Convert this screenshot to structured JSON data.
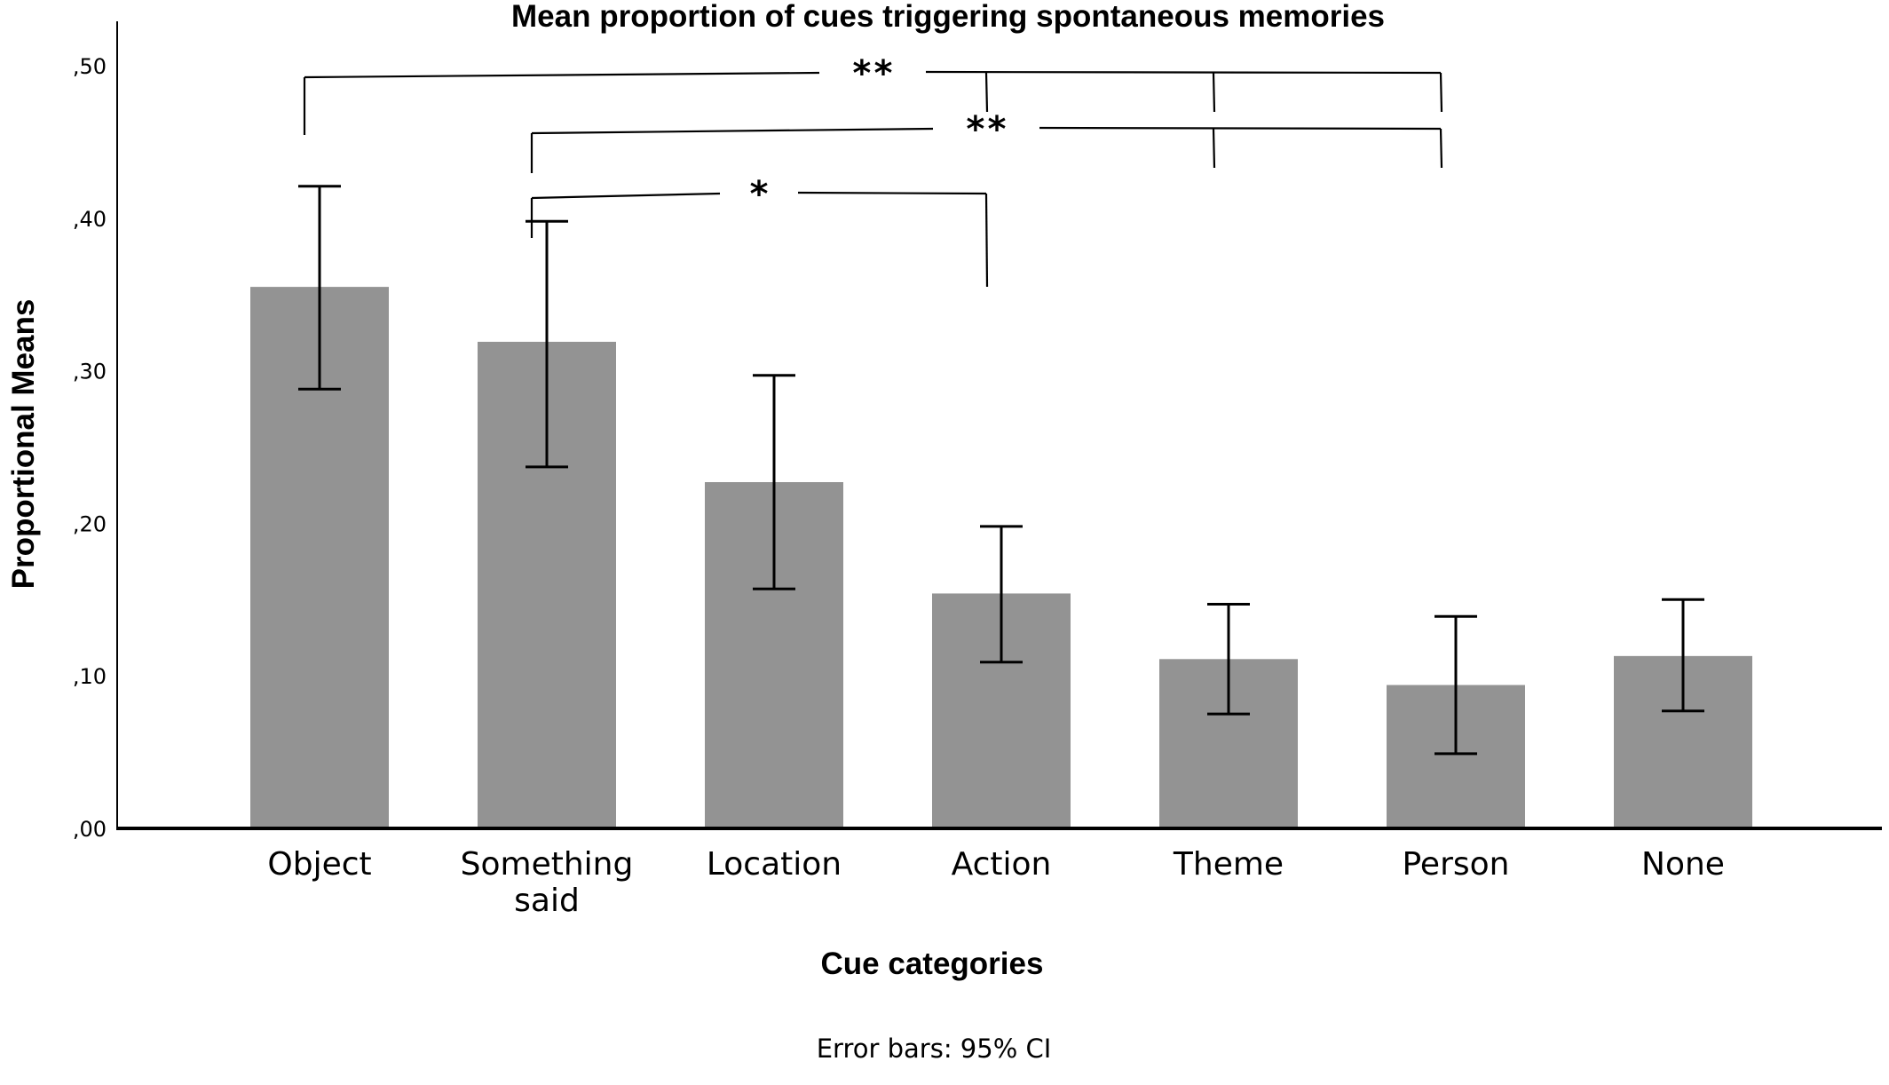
{
  "chart_data": {
    "type": "bar",
    "title": "Mean proportion of cues triggering spontaneous memories",
    "xlabel": "Cue categories",
    "ylabel": "Proportional Means",
    "categories": [
      [
        "Object"
      ],
      [
        "Something",
        "said"
      ],
      [
        "Location"
      ],
      [
        "Action"
      ],
      [
        "Theme"
      ],
      [
        "Person"
      ],
      [
        "None"
      ]
    ],
    "values": [
      0.355,
      0.319,
      0.227,
      0.154,
      0.111,
      0.094,
      0.113
    ],
    "ci_low": [
      0.288,
      0.237,
      0.157,
      0.109,
      0.075,
      0.049,
      0.077
    ],
    "ci_high": [
      0.421,
      0.398,
      0.297,
      0.198,
      0.147,
      0.139,
      0.15
    ],
    "ylim": [
      0,
      0.5
    ],
    "yticks": [
      0,
      0.1,
      0.2,
      0.3,
      0.4,
      0.5
    ],
    "ytick_labels": [
      ",00",
      ",10",
      ",20",
      ",30",
      ",40",
      ",50"
    ],
    "bar_color": "#939393",
    "grid": false,
    "annotations": [
      {
        "label": "**",
        "from": "Object",
        "to": [
          "Action",
          "Theme",
          "Person"
        ]
      },
      {
        "label": "**",
        "from": "Something said",
        "to": [
          "Theme",
          "Person"
        ]
      },
      {
        "label": "*",
        "from": "Something said",
        "to": [
          "Action"
        ]
      }
    ],
    "note": "Error bars: 95% CI"
  }
}
